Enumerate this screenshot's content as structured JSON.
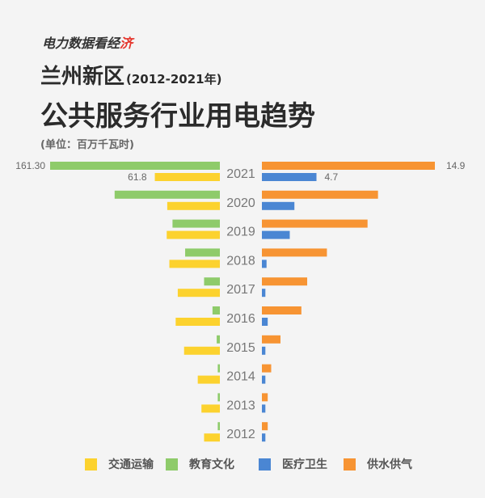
{
  "header": {
    "brand_prefix": "电力数据看经",
    "brand_accent": "济",
    "title_line1": "兰州新区",
    "title_years": "(2012-2021年)",
    "title_line2": "公共服务行业用电趋势",
    "unit": "(单位：百万千瓦时)"
  },
  "colors": {
    "transport": "#fcd22e",
    "education": "#8ecb6a",
    "medical": "#4a86d3",
    "water": "#f79433",
    "year_label": "#777777",
    "value_label": "#666666"
  },
  "chart_data": {
    "type": "bar",
    "orientation": "horizontal-butterfly",
    "categories": [
      "2021",
      "2020",
      "2019",
      "2018",
      "2017",
      "2016",
      "2015",
      "2014",
      "2013",
      "2012"
    ],
    "series": [
      {
        "name": "交通运输",
        "side": "left",
        "color": "#fcd22e",
        "values": [
          61.8,
          50.0,
          50.5,
          48.0,
          40.0,
          42.0,
          34.0,
          21.0,
          17.5,
          15.0
        ]
      },
      {
        "name": "教育文化",
        "side": "left",
        "color": "#8ecb6a",
        "values": [
          161.3,
          100.0,
          45.0,
          33.0,
          15.0,
          7.0,
          3.0,
          2.0,
          2.0,
          2.0
        ]
      },
      {
        "name": "医疗卫生",
        "side": "right",
        "color": "#4a86d3",
        "values": [
          4.7,
          2.8,
          2.4,
          0.4,
          0.3,
          0.5,
          0.3,
          0.3,
          0.3,
          0.3
        ]
      },
      {
        "name": "供水供气",
        "side": "right",
        "color": "#f79433",
        "values": [
          14.9,
          10.0,
          9.1,
          5.6,
          3.9,
          3.4,
          1.6,
          0.8,
          0.5,
          0.5
        ]
      }
    ],
    "data_labels": {
      "education_2021": "161.30",
      "transport_2021": "61.8",
      "water_2021": "14.9",
      "medical_2021": "4.7"
    },
    "left_scale_max": 161.3,
    "right_scale_max": 14.9,
    "grid": false,
    "legend_position": "bottom"
  }
}
